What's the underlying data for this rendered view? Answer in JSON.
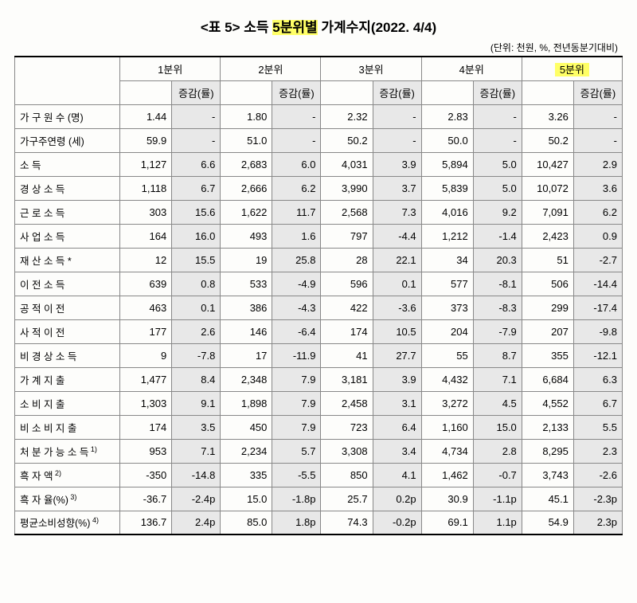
{
  "title": {
    "prefix": "<표 5> 소득 ",
    "highlight": "5분위별",
    "suffix": " 가계수지(2022. 4/4)"
  },
  "unit_note": "(단위: 천원, %, 전년동분기대비)",
  "quintile_headers": [
    "1분위",
    "2분위",
    "3분위",
    "4분위",
    "5분위"
  ],
  "sub_header": "증감(률)",
  "rows": [
    {
      "label": "가 구 원 수    (명)",
      "v": [
        "1.44",
        "-",
        "1.80",
        "-",
        "2.32",
        "-",
        "2.83",
        "-",
        "3.26",
        "-"
      ],
      "sec": "a"
    },
    {
      "label": "가구주연령    (세)",
      "v": [
        "59.9",
        "-",
        "51.0",
        "-",
        "50.2",
        "-",
        "50.0",
        "-",
        "50.2",
        "-"
      ],
      "sec": "a"
    },
    {
      "label": "소                    득",
      "v": [
        "1,127",
        "6.6",
        "2,683",
        "6.0",
        "4,031",
        "3.9",
        "5,894",
        "5.0",
        "10,427",
        "2.9"
      ],
      "sec": "b"
    },
    {
      "label": "  경   상   소   득",
      "v": [
        "1,118",
        "6.7",
        "2,666",
        "6.2",
        "3,990",
        "3.7",
        "5,839",
        "5.0",
        "10,072",
        "3.6"
      ],
      "sec": "b2"
    },
    {
      "label": "    근  로  소  득",
      "v": [
        "303",
        "15.6",
        "1,622",
        "11.7",
        "2,568",
        "7.3",
        "4,016",
        "9.2",
        "7,091",
        "6.2"
      ],
      "sec": "b2"
    },
    {
      "label": "    사  업  소  득",
      "v": [
        "164",
        "16.0",
        "493",
        "1.6",
        "797",
        "-4.4",
        "1,212",
        "-1.4",
        "2,423",
        "0.9"
      ],
      "sec": "b2"
    },
    {
      "label": "    재 산  소  득 *",
      "v": [
        "12",
        "15.5",
        "19",
        "25.8",
        "28",
        "22.1",
        "34",
        "20.3",
        "51",
        "-2.7"
      ],
      "sec": "b2"
    },
    {
      "label": "    이  전  소  득",
      "v": [
        "639",
        "0.8",
        "533",
        "-4.9",
        "596",
        "0.1",
        "577",
        "-8.1",
        "506",
        "-14.4"
      ],
      "sec": "b2"
    },
    {
      "label": "       공 적 이 전",
      "v": [
        "463",
        "0.1",
        "386",
        "-4.3",
        "422",
        "-3.6",
        "373",
        "-8.3",
        "299",
        "-17.4"
      ],
      "sec": "b2"
    },
    {
      "label": "       사 적 이 전",
      "v": [
        "177",
        "2.6",
        "146",
        "-6.4",
        "174",
        "10.5",
        "204",
        "-7.9",
        "207",
        "-9.8"
      ],
      "sec": "b2"
    },
    {
      "label": "  비 경 상 소 득",
      "v": [
        "9",
        "-7.8",
        "17",
        "-11.9",
        "41",
        "27.7",
        "55",
        "8.7",
        "355",
        "-12.1"
      ],
      "sec": "b2"
    },
    {
      "label": "가   계   지   출",
      "v": [
        "1,477",
        "8.4",
        "2,348",
        "7.9",
        "3,181",
        "3.9",
        "4,432",
        "7.1",
        "6,684",
        "6.3"
      ],
      "sec": "c"
    },
    {
      "label": "  소   비   지   출",
      "v": [
        "1,303",
        "9.1",
        "1,898",
        "7.9",
        "2,458",
        "3.1",
        "3,272",
        "4.5",
        "4,552",
        "6.7"
      ],
      "sec": "c2"
    },
    {
      "label": "  비 소 비 지 출",
      "v": [
        "174",
        "3.5",
        "450",
        "7.9",
        "723",
        "6.4",
        "1,160",
        "15.0",
        "2,133",
        "5.5"
      ],
      "sec": "c2"
    },
    {
      "label": "처 분 가 능 소 득",
      "sup": "1)",
      "v": [
        "953",
        "7.1",
        "2,234",
        "5.7",
        "3,308",
        "3.4",
        "4,734",
        "2.8",
        "8,295",
        "2.3"
      ],
      "sec": "d"
    },
    {
      "label": "흑     자     액",
      "sup": "2)",
      "v": [
        "-350",
        "-14.8",
        "335",
        "-5.5",
        "850",
        "4.1",
        "1,462",
        "-0.7",
        "3,743",
        "-2.6"
      ],
      "sec": "d2"
    },
    {
      "label": "흑   자   율(%)",
      "sup": "3)",
      "v": [
        "-36.7",
        "-2.4p",
        "15.0",
        "-1.8p",
        "25.7",
        "0.2p",
        "30.9",
        "-1.1p",
        "45.1",
        "-2.3p"
      ],
      "sec": "d2"
    },
    {
      "label": "평균소비성향(%)",
      "sup": "4)",
      "v": [
        "136.7",
        "2.4p",
        "85.0",
        "1.8p",
        "74.3",
        "-0.2p",
        "69.1",
        "1.1p",
        "54.9",
        "2.3p"
      ],
      "sec": "d2"
    }
  ],
  "section_breaks": [
    "b",
    "c",
    "d"
  ],
  "colors": {
    "shade": "#e8e8e8",
    "highlight": "#ffff66",
    "border": "#888888",
    "background": "#fdfdfb"
  },
  "fontsize": {
    "title": 17,
    "body": 13,
    "unit": 12
  }
}
